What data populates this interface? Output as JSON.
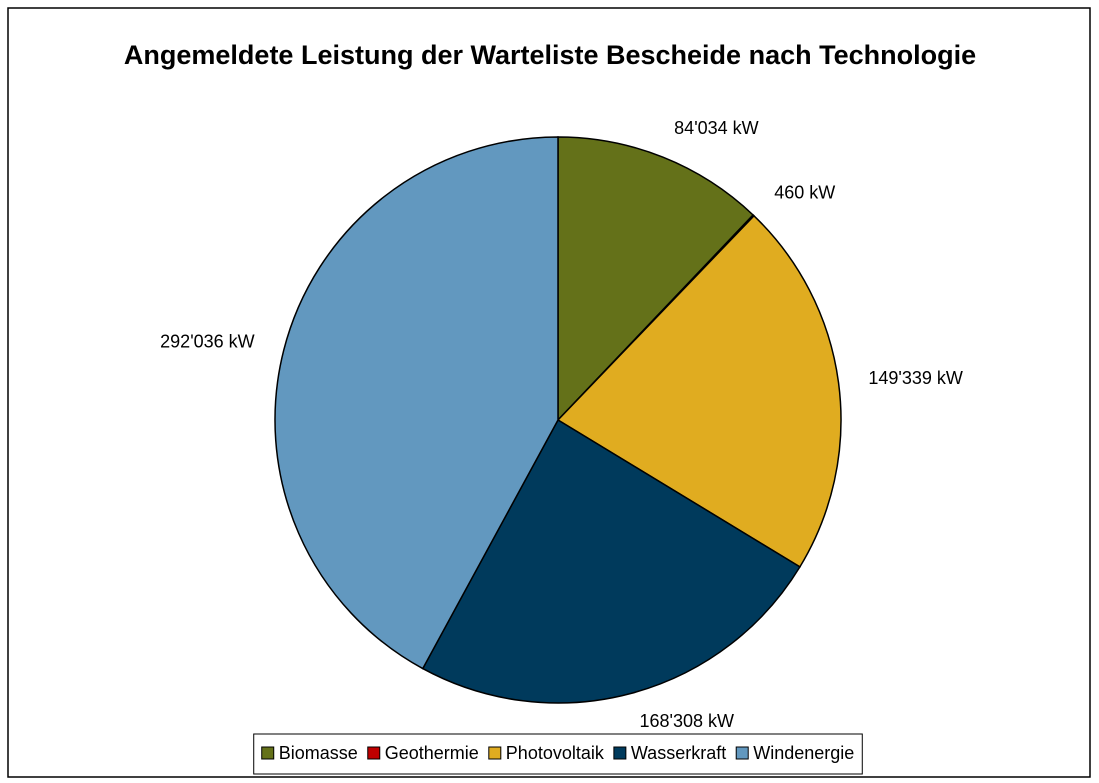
{
  "chart_data": {
    "type": "pie",
    "title": "Angemeldete Leistung der Warteliste Bescheide nach Technologie",
    "categories": [
      "Biomasse",
      "Geothermie",
      "Photovoltaik",
      "Wasserkraft",
      "Windenergie"
    ],
    "values": [
      84034,
      460,
      149339,
      168308,
      292036
    ],
    "value_labels": [
      "84'034 kW",
      "460 kW",
      "149'339 kW",
      "168'308 kW",
      "292'036 kW"
    ],
    "colors": [
      "#647119",
      "#c00000",
      "#e0ac20",
      "#003a5c",
      "#6298bf"
    ],
    "legend": "bottom"
  }
}
